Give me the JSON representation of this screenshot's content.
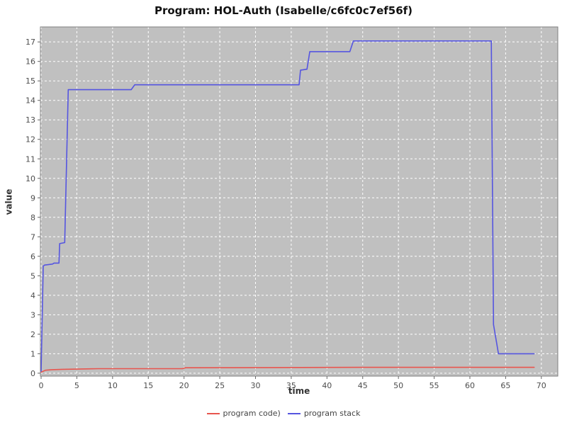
{
  "title": "Program: HOL-Auth (Isabelle/c6fc0c7ef56f)",
  "chart_data": {
    "type": "line",
    "title": "Program: HOL-Auth (Isabelle/c6fc0c7ef56f)",
    "xlabel": "time",
    "ylabel": "value",
    "xlim": [
      -0.1,
      72.3
    ],
    "ylim": [
      -0.15,
      17.77
    ],
    "x_ticks": [
      0,
      5,
      10,
      15,
      20,
      25,
      30,
      35,
      40,
      45,
      50,
      55,
      60,
      65,
      70
    ],
    "y_ticks": [
      0,
      1,
      2,
      3,
      4,
      5,
      6,
      7,
      8,
      9,
      10,
      11,
      12,
      13,
      14,
      15,
      16,
      17
    ],
    "grid": true,
    "legend_position": "bottom",
    "plot_bg_color": "#c0c0c0",
    "grid_color": "#ffffff",
    "border_color": "#7f7f7f",
    "tick_color": "#666666",
    "tick_label_color": "#4d4d4d",
    "series": [
      {
        "name": "program code)",
        "color": "#e8554e",
        "points": [
          [
            0,
            0.05
          ],
          [
            0.6,
            0.15
          ],
          [
            1.5,
            0.18
          ],
          [
            3,
            0.2
          ],
          [
            8,
            0.23
          ],
          [
            19.8,
            0.23
          ],
          [
            20.2,
            0.28
          ],
          [
            45,
            0.3
          ],
          [
            69,
            0.3
          ]
        ]
      },
      {
        "name": "program stack",
        "color": "#5555e0",
        "points": [
          [
            0,
            0.1
          ],
          [
            0.1,
            1.9
          ],
          [
            0.3,
            5.5
          ],
          [
            0.5,
            5.55
          ],
          [
            1.6,
            5.6
          ],
          [
            1.8,
            5.65
          ],
          [
            2.5,
            5.65
          ],
          [
            2.6,
            6.65
          ],
          [
            3.3,
            6.7
          ],
          [
            3.8,
            14.55
          ],
          [
            12.6,
            14.55
          ],
          [
            13.1,
            14.8
          ],
          [
            36.1,
            14.8
          ],
          [
            36.3,
            15.55
          ],
          [
            37.2,
            15.6
          ],
          [
            37.6,
            16.5
          ],
          [
            43.2,
            16.5
          ],
          [
            43.7,
            17.05
          ],
          [
            63.0,
            17.05
          ],
          [
            63.3,
            2.5
          ],
          [
            64.0,
            1.0
          ],
          [
            69.0,
            1.0
          ]
        ]
      }
    ]
  }
}
